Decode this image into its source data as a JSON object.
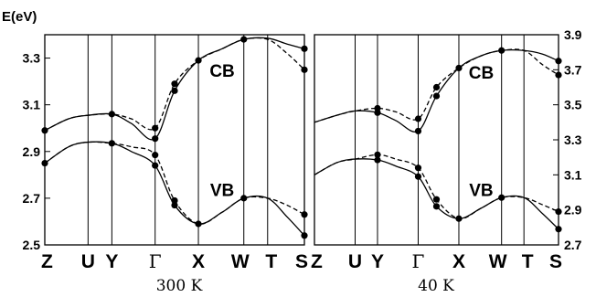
{
  "chart_data": [
    {
      "type": "line",
      "title": "",
      "ylabel": "E(eV)",
      "xlabel": "300 K",
      "ylim": [
        2.5,
        3.4
      ],
      "yticks": [
        "2.5",
        "2.7",
        "2.9",
        "3.1",
        "3.3"
      ],
      "y_axis_side": "left",
      "kpoints": [
        "Z",
        "U",
        "Y",
        "Γ",
        "X",
        "W",
        "T",
        "S"
      ],
      "kpoint_positions": [
        0,
        1.0,
        1.55,
        2.55,
        3.55,
        4.6,
        5.15,
        6.0
      ],
      "band_labels": [
        {
          "text": "CB",
          "x": 4.1,
          "y": 3.22
        },
        {
          "text": "VB",
          "x": 4.1,
          "y": 2.71
        }
      ],
      "series": [
        {
          "style": "solid",
          "x": [
            0,
            0.55,
            1.0,
            1.55,
            2.0,
            2.55,
            3.0,
            3.55,
            4.1,
            4.6,
            5.15,
            5.6,
            6.0
          ],
          "y": [
            2.99,
            3.04,
            3.055,
            3.06,
            3.02,
            2.955,
            3.16,
            3.29,
            3.34,
            3.38,
            3.385,
            3.36,
            3.34
          ]
        },
        {
          "style": "dashed",
          "x": [
            0,
            0.55,
            1.0,
            1.55,
            2.0,
            2.55,
            3.0,
            3.55,
            4.1,
            4.6,
            5.15,
            5.6,
            6.0
          ],
          "y": [
            2.99,
            3.04,
            3.055,
            3.06,
            3.04,
            3.0,
            3.19,
            3.29,
            3.34,
            3.38,
            3.38,
            3.32,
            3.25
          ]
        },
        {
          "style": "solid",
          "x": [
            0,
            0.55,
            1.0,
            1.55,
            2.0,
            2.55,
            3.0,
            3.55,
            4.1,
            4.6,
            5.15,
            5.6,
            6.0
          ],
          "y": [
            2.85,
            2.92,
            2.94,
            2.935,
            2.9,
            2.84,
            2.67,
            2.59,
            2.64,
            2.7,
            2.7,
            2.62,
            2.54
          ]
        },
        {
          "style": "dashed",
          "x": [
            0,
            0.55,
            1.0,
            1.55,
            2.0,
            2.55,
            3.0,
            3.55,
            4.1,
            4.6,
            5.15,
            5.6,
            6.0
          ],
          "y": [
            2.85,
            2.92,
            2.94,
            2.935,
            2.92,
            2.885,
            2.69,
            2.59,
            2.64,
            2.7,
            2.7,
            2.67,
            2.63
          ]
        }
      ],
      "markers": [
        {
          "x": 0,
          "y": 2.99
        },
        {
          "x": 0,
          "y": 2.85
        },
        {
          "x": 1.55,
          "y": 3.06
        },
        {
          "x": 1.55,
          "y": 2.935
        },
        {
          "x": 2.55,
          "y": 3.0
        },
        {
          "x": 2.55,
          "y": 2.955
        },
        {
          "x": 2.55,
          "y": 2.885
        },
        {
          "x": 2.55,
          "y": 2.84
        },
        {
          "x": 3.0,
          "y": 3.19
        },
        {
          "x": 3.0,
          "y": 3.16
        },
        {
          "x": 3.0,
          "y": 2.69
        },
        {
          "x": 3.0,
          "y": 2.67
        },
        {
          "x": 3.55,
          "y": 3.29
        },
        {
          "x": 3.55,
          "y": 2.59
        },
        {
          "x": 4.6,
          "y": 3.38
        },
        {
          "x": 4.6,
          "y": 2.7
        },
        {
          "x": 6.0,
          "y": 3.34
        },
        {
          "x": 6.0,
          "y": 3.25
        },
        {
          "x": 6.0,
          "y": 2.63
        },
        {
          "x": 6.0,
          "y": 2.54
        }
      ]
    },
    {
      "type": "line",
      "title": "",
      "ylabel": "",
      "xlabel": "40 K",
      "ylim": [
        2.7,
        3.9
      ],
      "yticks": [
        "2.7",
        "2.9",
        "3.1",
        "3.3",
        "3.5",
        "3.7",
        "3.9"
      ],
      "y_axis_side": "right",
      "kpoints": [
        "Z",
        "U",
        "Y",
        "Γ",
        "X",
        "W",
        "T",
        "S"
      ],
      "kpoint_positions": [
        0,
        1.0,
        1.55,
        2.55,
        3.55,
        4.6,
        5.15,
        6.0
      ],
      "band_labels": [
        {
          "text": "CB",
          "x": 4.1,
          "y": 3.65
        },
        {
          "text": "VB",
          "x": 4.1,
          "y": 2.98
        }
      ],
      "series": [
        {
          "style": "solid",
          "x": [
            0,
            0.55,
            1.0,
            1.55,
            2.0,
            2.55,
            3.0,
            3.55,
            4.1,
            4.6,
            5.15,
            5.6,
            6.0
          ],
          "y": [
            3.4,
            3.44,
            3.465,
            3.455,
            3.41,
            3.35,
            3.55,
            3.71,
            3.78,
            3.81,
            3.81,
            3.79,
            3.75
          ]
        },
        {
          "style": "dashed",
          "x": [
            0,
            0.55,
            1.0,
            1.55,
            2.0,
            2.55,
            3.0,
            3.55,
            4.1,
            4.6,
            5.15,
            5.6,
            6.0
          ],
          "y": [
            3.4,
            3.44,
            3.465,
            3.48,
            3.46,
            3.42,
            3.6,
            3.71,
            3.78,
            3.81,
            3.81,
            3.73,
            3.67
          ]
        },
        {
          "style": "solid",
          "x": [
            0,
            0.55,
            1.0,
            1.55,
            2.0,
            2.55,
            3.0,
            3.55,
            4.1,
            4.6,
            5.15,
            5.6,
            6.0
          ],
          "y": [
            3.1,
            3.17,
            3.19,
            3.185,
            3.15,
            3.09,
            2.92,
            2.85,
            2.91,
            2.97,
            2.97,
            2.88,
            2.79
          ]
        },
        {
          "style": "dashed",
          "x": [
            0,
            0.55,
            1.0,
            1.55,
            2.0,
            2.55,
            3.0,
            3.55,
            4.1,
            4.6,
            5.15,
            5.6,
            6.0
          ],
          "y": [
            3.1,
            3.17,
            3.19,
            3.215,
            3.19,
            3.14,
            2.96,
            2.85,
            2.91,
            2.97,
            2.97,
            2.93,
            2.89
          ]
        }
      ],
      "markers": [
        {
          "x": 1.55,
          "y": 3.48
        },
        {
          "x": 1.55,
          "y": 3.455
        },
        {
          "x": 1.55,
          "y": 3.215
        },
        {
          "x": 1.55,
          "y": 3.185
        },
        {
          "x": 2.55,
          "y": 3.42
        },
        {
          "x": 2.55,
          "y": 3.35
        },
        {
          "x": 2.55,
          "y": 3.14
        },
        {
          "x": 2.55,
          "y": 3.09
        },
        {
          "x": 3.0,
          "y": 3.6
        },
        {
          "x": 3.0,
          "y": 3.55
        },
        {
          "x": 3.0,
          "y": 2.96
        },
        {
          "x": 3.0,
          "y": 2.92
        },
        {
          "x": 3.55,
          "y": 3.71
        },
        {
          "x": 3.55,
          "y": 2.85
        },
        {
          "x": 4.6,
          "y": 3.81
        },
        {
          "x": 4.6,
          "y": 2.97
        },
        {
          "x": 6.0,
          "y": 3.75
        },
        {
          "x": 6.0,
          "y": 3.67
        },
        {
          "x": 6.0,
          "y": 2.89
        },
        {
          "x": 6.0,
          "y": 2.79
        }
      ]
    }
  ]
}
